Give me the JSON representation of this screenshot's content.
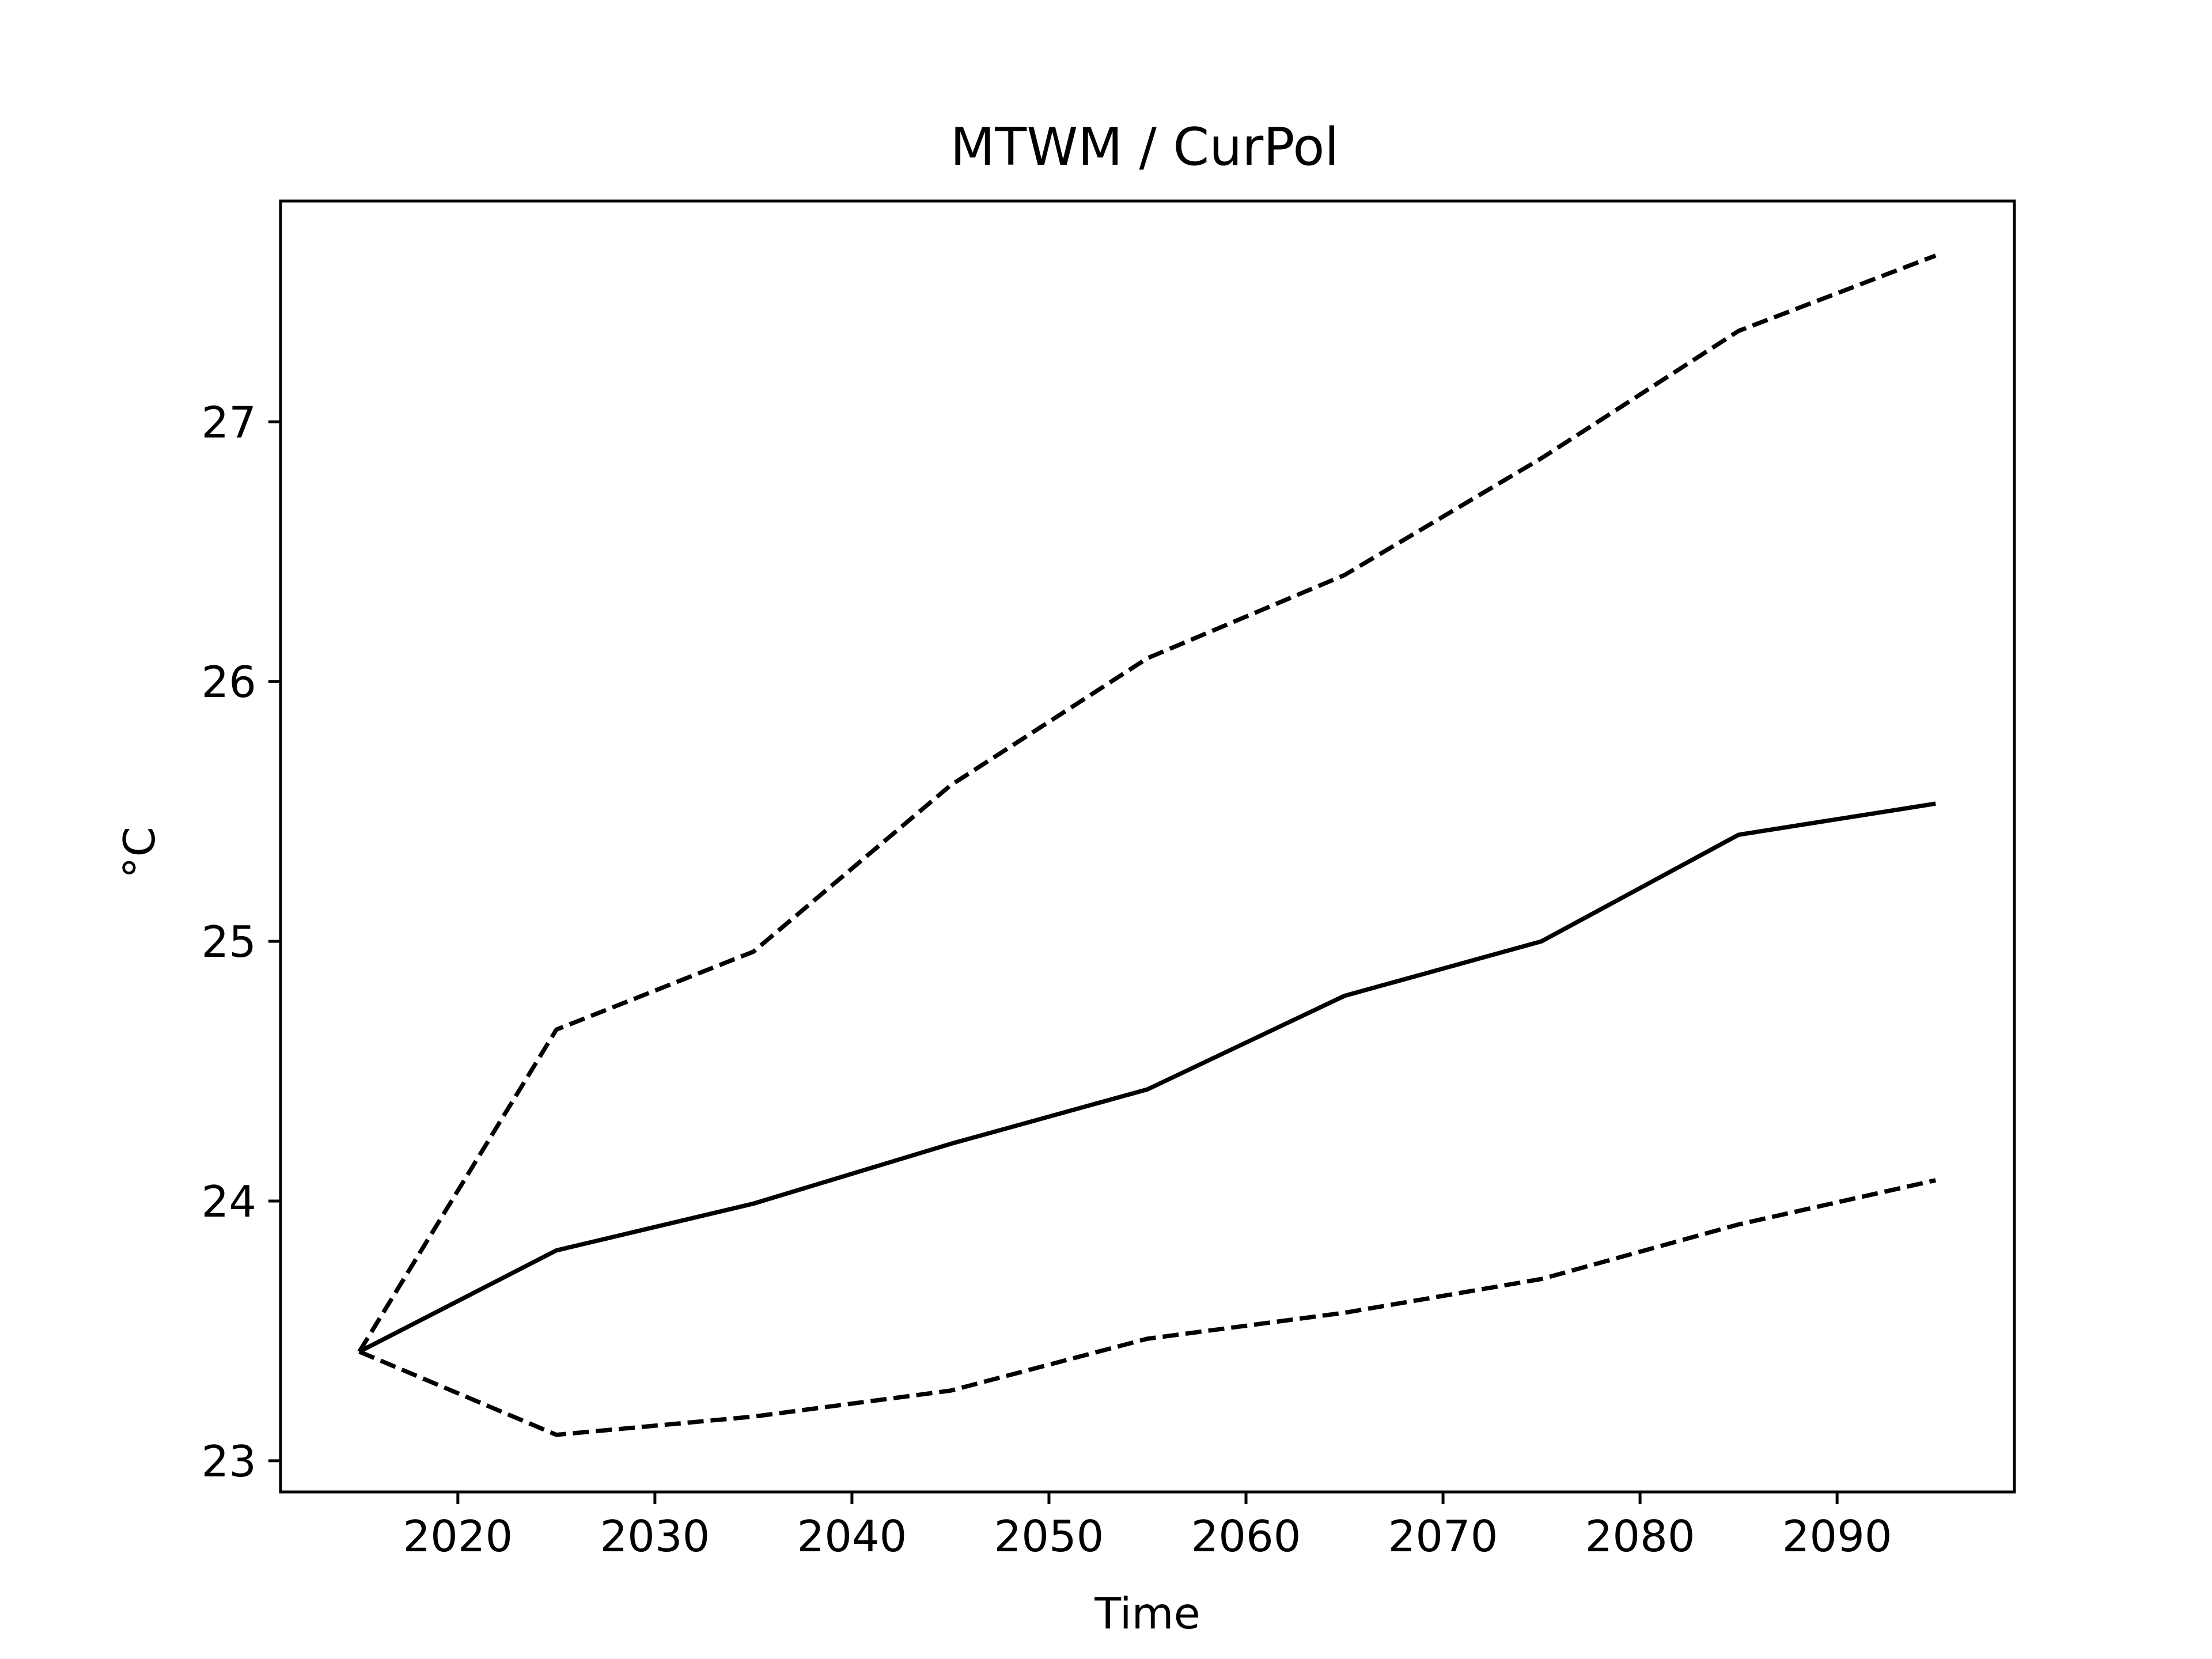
{
  "chart_data": {
    "type": "line",
    "title": "MTWM / CurPol",
    "xlabel": "Time",
    "ylabel": "°C",
    "xlim": [
      2011,
      2099
    ],
    "ylim": [
      22.88,
      27.85
    ],
    "xticks": [
      2020,
      2030,
      2040,
      2050,
      2060,
      2070,
      2080,
      2090
    ],
    "yticks": [
      23,
      24,
      25,
      26,
      27
    ],
    "x": [
      2015,
      2025,
      2035,
      2045,
      2055,
      2065,
      2075,
      2085,
      2095
    ],
    "grid": false,
    "legend": "none",
    "series": [
      {
        "style": "dashed",
        "color": "#000000",
        "values": [
          23.42,
          24.66,
          24.96,
          25.6,
          26.09,
          26.41,
          26.86,
          27.35,
          27.64
        ]
      },
      {
        "style": "solid",
        "color": "#000000",
        "values": [
          23.42,
          23.81,
          23.99,
          24.22,
          24.43,
          24.79,
          25.0,
          25.41,
          25.53
        ]
      },
      {
        "style": "dashed",
        "color": "#000000",
        "values": [
          23.42,
          23.1,
          23.17,
          23.27,
          23.47,
          23.57,
          23.7,
          23.91,
          24.08
        ]
      }
    ]
  }
}
